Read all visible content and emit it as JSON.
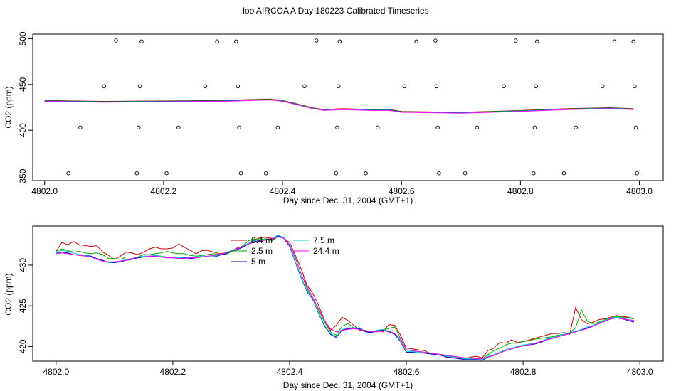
{
  "title": "loo AIRCOA A  Day 180223  Calibrated Timeseries",
  "chart_data": [
    {
      "type": "line",
      "xlabel": "Day since Dec. 31, 2004 (GMT+1)",
      "ylabel": "CO2 (ppm)",
      "xlim": [
        4801.98,
        4803.04
      ],
      "ylim": [
        345,
        505
      ],
      "xticks": [
        "4802.0",
        "4802.2",
        "4802.4",
        "4802.6",
        "4802.8",
        "4803.0"
      ],
      "yticks": [
        "350",
        "400",
        "450",
        "500"
      ],
      "colors": [
        "#cc0000",
        "#00aa00",
        "#0000cc",
        "#00cccc",
        "#ff00ff"
      ],
      "series_x": [
        4802.0,
        4802.1,
        4802.2,
        4802.3,
        4802.35,
        4802.38,
        4802.4,
        4802.42,
        4802.45,
        4802.47,
        4802.5,
        4802.55,
        4802.58,
        4802.6,
        4802.7,
        4802.8,
        4802.88,
        4802.95,
        4802.99
      ],
      "series_y": [
        432,
        431,
        431.5,
        432,
        433,
        433.5,
        432,
        429,
        424,
        422,
        423,
        422,
        422,
        420,
        419,
        421,
        423,
        424,
        423
      ],
      "cal_points": [
        {
          "x": 4802.04,
          "y": 353
        },
        {
          "x": 4802.06,
          "y": 403
        },
        {
          "x": 4802.1,
          "y": 448
        },
        {
          "x": 4802.12,
          "y": 498
        },
        {
          "x": 4802.155,
          "y": 353
        },
        {
          "x": 4802.158,
          "y": 403
        },
        {
          "x": 4802.16,
          "y": 448
        },
        {
          "x": 4802.163,
          "y": 497
        },
        {
          "x": 4802.205,
          "y": 353
        },
        {
          "x": 4802.225,
          "y": 403
        },
        {
          "x": 4802.27,
          "y": 448
        },
        {
          "x": 4802.29,
          "y": 497
        },
        {
          "x": 4802.322,
          "y": 497
        },
        {
          "x": 4802.325,
          "y": 448
        },
        {
          "x": 4802.327,
          "y": 403
        },
        {
          "x": 4802.33,
          "y": 353
        },
        {
          "x": 4802.372,
          "y": 353
        },
        {
          "x": 4802.392,
          "y": 403
        },
        {
          "x": 4802.437,
          "y": 448
        },
        {
          "x": 4802.457,
          "y": 498
        },
        {
          "x": 4802.49,
          "y": 353
        },
        {
          "x": 4802.492,
          "y": 403
        },
        {
          "x": 4802.494,
          "y": 448
        },
        {
          "x": 4802.496,
          "y": 497
        },
        {
          "x": 4802.54,
          "y": 353
        },
        {
          "x": 4802.56,
          "y": 403
        },
        {
          "x": 4802.605,
          "y": 448
        },
        {
          "x": 4802.625,
          "y": 497
        },
        {
          "x": 4802.657,
          "y": 498
        },
        {
          "x": 4802.659,
          "y": 448
        },
        {
          "x": 4802.661,
          "y": 403
        },
        {
          "x": 4802.663,
          "y": 353
        },
        {
          "x": 4802.707,
          "y": 353
        },
        {
          "x": 4802.727,
          "y": 403
        },
        {
          "x": 4802.772,
          "y": 448
        },
        {
          "x": 4802.792,
          "y": 498
        },
        {
          "x": 4802.822,
          "y": 353
        },
        {
          "x": 4802.824,
          "y": 403
        },
        {
          "x": 4802.826,
          "y": 448
        },
        {
          "x": 4802.828,
          "y": 497
        },
        {
          "x": 4802.873,
          "y": 353
        },
        {
          "x": 4802.893,
          "y": 403
        },
        {
          "x": 4802.938,
          "y": 448
        },
        {
          "x": 4802.958,
          "y": 497
        },
        {
          "x": 4802.99,
          "y": 497
        },
        {
          "x": 4802.992,
          "y": 448
        },
        {
          "x": 4802.994,
          "y": 403
        },
        {
          "x": 4802.996,
          "y": 353
        }
      ]
    },
    {
      "type": "line",
      "xlabel": "Day since Dec. 31, 2004 (GMT+1)",
      "ylabel": "CO2 (ppm)",
      "xlim": [
        4801.96,
        4803.04
      ],
      "ylim": [
        418.2,
        434.8
      ],
      "xticks": [
        "4802.0",
        "4802.2",
        "4802.4",
        "4802.6",
        "4802.8",
        "4803.0"
      ],
      "yticks": [
        "420",
        "425",
        "430"
      ],
      "legend_position": "top-center",
      "x": [
        4802.0,
        4802.01,
        4802.02,
        4802.03,
        4802.04,
        4802.05,
        4802.06,
        4802.07,
        4802.08,
        4802.09,
        4802.1,
        4802.11,
        4802.12,
        4802.13,
        4802.14,
        4802.15,
        4802.16,
        4802.17,
        4802.18,
        4802.19,
        4802.2,
        4802.21,
        4802.22,
        4802.23,
        4802.24,
        4802.25,
        4802.26,
        4802.27,
        4802.28,
        4802.29,
        4802.3,
        4802.31,
        4802.32,
        4802.33,
        4802.34,
        4802.35,
        4802.36,
        4802.37,
        4802.38,
        4802.39,
        4802.4,
        4802.41,
        4802.42,
        4802.43,
        4802.44,
        4802.45,
        4802.46,
        4802.47,
        4802.48,
        4802.49,
        4802.5,
        4802.51,
        4802.52,
        4802.53,
        4802.54,
        4802.55,
        4802.56,
        4802.57,
        4802.58,
        4802.59,
        4802.6,
        4802.61,
        4802.62,
        4802.63,
        4802.64,
        4802.65,
        4802.66,
        4802.67,
        4802.68,
        4802.69,
        4802.7,
        4802.71,
        4802.72,
        4802.73,
        4802.74,
        4802.75,
        4802.76,
        4802.77,
        4802.78,
        4802.79,
        4802.8,
        4802.81,
        4802.82,
        4802.83,
        4802.84,
        4802.85,
        4802.86,
        4802.87,
        4802.88,
        4802.89,
        4802.9,
        4802.91,
        4802.92,
        4802.93,
        4802.94,
        4802.95,
        4802.96,
        4802.97,
        4802.98,
        4802.99
      ],
      "series": [
        {
          "name": "0.4 m",
          "color": "#cc0000",
          "values": [
            431.7,
            432.8,
            432.5,
            432.9,
            432.5,
            432.4,
            432.3,
            432.4,
            431.6,
            431.2,
            430.7,
            431.1,
            431.6,
            431.5,
            431.3,
            431.6,
            432,
            432.2,
            432,
            432,
            432.1,
            432.6,
            432.2,
            431.8,
            431.4,
            431.8,
            431.8,
            431.6,
            431.4,
            431.5,
            431.7,
            432.1,
            432.3,
            432.7,
            433.1,
            433.4,
            433.4,
            433.3,
            433.5,
            433.3,
            432.8,
            431.2,
            429.5,
            427.5,
            426.5,
            425,
            423.2,
            422,
            422.6,
            423.6,
            423.2,
            422.6,
            422,
            422,
            421.7,
            422,
            421.8,
            422.7,
            422.6,
            421.4,
            419.8,
            419.7,
            419.6,
            419.5,
            419.2,
            419.1,
            419,
            418.6,
            418.8,
            418.5,
            418.5,
            418.7,
            418.8,
            418.6,
            419.5,
            419.8,
            420.5,
            420.4,
            420.8,
            420.5,
            420.6,
            420.8,
            421,
            421.2,
            421.4,
            421.6,
            421.6,
            421.7,
            421.5,
            424.8,
            423.3,
            422.8,
            423,
            423.3,
            423.4,
            423.6,
            423.8,
            423.7,
            423.6,
            423.4
          ]
        },
        {
          "name": "2.5 m",
          "color": "#00aa00",
          "values": [
            431.7,
            432,
            431.8,
            431.6,
            431.7,
            431.5,
            431.4,
            431.5,
            431.3,
            430.8,
            430.8,
            430.7,
            431,
            431,
            431,
            431.3,
            431.3,
            431.4,
            431.5,
            431.7,
            431.5,
            431.4,
            431.4,
            431.2,
            431.1,
            431.2,
            431.3,
            431.4,
            431.3,
            431.3,
            431.6,
            432,
            432.4,
            433,
            433.2,
            433.2,
            433.2,
            433,
            433.5,
            433.4,
            432.5,
            430.9,
            428.9,
            427.1,
            425.7,
            424.4,
            423,
            421.8,
            421.4,
            422.5,
            422.8,
            422.3,
            422.2,
            421.8,
            421.8,
            422,
            422,
            422.2,
            422.4,
            421,
            419.6,
            419.5,
            419.4,
            419.3,
            419.2,
            419.1,
            419,
            418.9,
            418.8,
            418.7,
            418.6,
            418.6,
            418.6,
            418.5,
            419,
            419.5,
            419.8,
            420.2,
            420.4,
            420.4,
            420.6,
            420.7,
            420.9,
            421,
            421.1,
            421.2,
            421.4,
            421.5,
            421.7,
            422.3,
            424.5,
            423.1,
            422.8,
            423,
            423.3,
            423.5,
            423.7,
            423.6,
            423.5,
            423.4
          ]
        },
        {
          "name": "5 m",
          "color": "#0000cc",
          "values": [
            431.5,
            431.6,
            431.5,
            431.3,
            431.2,
            431.2,
            431.1,
            430.8,
            430.6,
            430.3,
            430.3,
            430.4,
            430.6,
            430.7,
            430.9,
            431,
            431,
            431.1,
            431,
            430.9,
            430.9,
            430.8,
            430.9,
            430.8,
            430.9,
            431,
            431,
            431,
            431.2,
            431.4,
            431.7,
            431.9,
            432.2,
            432.6,
            432.9,
            433,
            433.1,
            433.1,
            433.6,
            433.3,
            432.3,
            430.3,
            428.4,
            426.7,
            425.8,
            424,
            422.5,
            421.5,
            421.1,
            422,
            422.2,
            422.2,
            422.2,
            421.8,
            421.7,
            421.9,
            422,
            421.8,
            421.5,
            420.6,
            419.3,
            419.3,
            419.2,
            419.2,
            419.1,
            419,
            418.9,
            418.7,
            418.6,
            418.5,
            418.4,
            418.4,
            418.4,
            418.3,
            418.7,
            418.9,
            419.2,
            419.5,
            419.7,
            419.9,
            420.1,
            420.2,
            420.3,
            420.5,
            420.8,
            421,
            421.2,
            421.4,
            421.6,
            421.8,
            422,
            422.3,
            422.5,
            422.8,
            423.1,
            423.4,
            423.5,
            423.4,
            423.2,
            423
          ]
        },
        {
          "name": "7.5 m",
          "color": "#00cccc",
          "values": [
            431.5,
            431.8,
            431.7,
            431.5,
            431.3,
            431.2,
            431,
            430.7,
            430.5,
            430.3,
            430.4,
            430.5,
            430.7,
            430.8,
            431,
            431.1,
            431.1,
            431.2,
            431.1,
            431,
            431,
            430.9,
            431,
            430.9,
            431,
            431.1,
            431.1,
            431.1,
            431.3,
            431.5,
            431.8,
            432,
            432.3,
            432.7,
            433,
            433.1,
            433.2,
            433.2,
            433.7,
            433.4,
            432.4,
            430.4,
            428.5,
            426.8,
            425.9,
            424.1,
            422.6,
            421.6,
            421.2,
            422.1,
            422.3,
            422.3,
            422.3,
            421.9,
            421.8,
            422,
            422.1,
            421.9,
            421.6,
            420.7,
            419.4,
            419.4,
            419.3,
            419.3,
            419.2,
            419.1,
            419,
            418.8,
            418.7,
            418.6,
            418.5,
            418.5,
            418.5,
            418.4,
            418.8,
            419,
            419.3,
            419.6,
            419.8,
            420,
            420.2,
            420.3,
            420.4,
            420.6,
            420.9,
            421.1,
            421.3,
            421.5,
            421.7,
            421.9,
            422.1,
            422.4,
            422.6,
            422.9,
            423.2,
            423.5,
            423.6,
            423.5,
            423.3,
            423.1
          ]
        },
        {
          "name": "24.4 m",
          "color": "#ff00ff",
          "values": [
            431.4,
            431.5,
            431.4,
            431.3,
            431.2,
            431.1,
            431,
            430.7,
            430.5,
            430.4,
            430.4,
            430.5,
            430.6,
            430.8,
            431,
            431,
            431.1,
            431.1,
            431,
            430.9,
            430.9,
            430.8,
            430.8,
            430.9,
            430.9,
            431,
            431.1,
            431.2,
            431.3,
            431.5,
            431.7,
            432,
            432.3,
            432.6,
            432.8,
            433,
            433.1,
            433.2,
            433.5,
            433.3,
            432.5,
            430.8,
            428.9,
            427.3,
            426,
            424.6,
            423.2,
            422.2,
            421.8,
            422,
            422.1,
            422.2,
            422.1,
            421.9,
            421.8,
            421.8,
            421.9,
            421.9,
            421.6,
            420.9,
            419.6,
            419.5,
            419.4,
            419.3,
            419.2,
            419.1,
            419,
            418.9,
            418.8,
            418.7,
            418.6,
            418.6,
            418.5,
            418.5,
            418.7,
            418.9,
            419.2,
            419.5,
            419.7,
            419.9,
            420.1,
            420.2,
            420.4,
            420.6,
            420.8,
            421,
            421.2,
            421.4,
            421.6,
            421.8,
            422,
            422.2,
            422.5,
            422.8,
            423.1,
            423.4,
            423.5,
            423.4,
            423.3,
            423.2
          ]
        }
      ]
    }
  ]
}
